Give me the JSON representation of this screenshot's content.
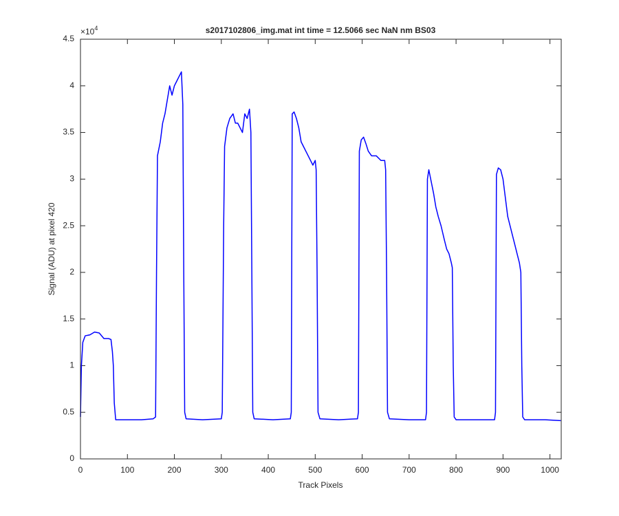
{
  "chart_data": {
    "type": "line",
    "title": "s2017102806_img.mat int time = 12.5066 sec  NaN nm BS03",
    "xlabel": "Track Pixels",
    "ylabel": "Signal (ADU) at pixel 420",
    "y_exponent": {
      "base": "×10",
      "power": "4"
    },
    "color": "#0000ff",
    "xlim": [
      0,
      1024
    ],
    "xticks": [
      0,
      100,
      200,
      300,
      400,
      500,
      600,
      700,
      800,
      900,
      1000
    ],
    "ylim": [
      0,
      4.5
    ],
    "yticks": [
      0,
      0.5,
      1,
      1.5,
      2,
      2.5,
      3,
      3.5,
      4,
      4.5
    ],
    "x": [
      0,
      2,
      5,
      10,
      20,
      30,
      40,
      50,
      60,
      65,
      68,
      70,
      72,
      75,
      100,
      130,
      155,
      160,
      162,
      164,
      170,
      175,
      180,
      185,
      190,
      195,
      200,
      205,
      210,
      215,
      218,
      220,
      222,
      225,
      260,
      300,
      302,
      305,
      307,
      312,
      318,
      325,
      330,
      335,
      340,
      345,
      350,
      355,
      360,
      363,
      365,
      367,
      370,
      410,
      447,
      449,
      451,
      455,
      460,
      465,
      470,
      475,
      480,
      485,
      490,
      495,
      500,
      502,
      504,
      506,
      510,
      550,
      590,
      592,
      594,
      598,
      603,
      608,
      613,
      620,
      630,
      640,
      648,
      650,
      652,
      654,
      658,
      700,
      735,
      737,
      739,
      742,
      748,
      752,
      757,
      762,
      768,
      775,
      780,
      785,
      790,
      792,
      794,
      796,
      800,
      840,
      882,
      884,
      886,
      890,
      895,
      900,
      905,
      910,
      915,
      920,
      925,
      930,
      935,
      938,
      940,
      942,
      946,
      990,
      1023
    ],
    "values": [
      0.45,
      1.0,
      1.25,
      1.32,
      1.33,
      1.36,
      1.35,
      1.29,
      1.29,
      1.28,
      1.15,
      1.0,
      0.6,
      0.42,
      0.42,
      0.42,
      0.43,
      0.45,
      2.0,
      3.25,
      3.4,
      3.6,
      3.7,
      3.85,
      4.0,
      3.9,
      4.0,
      4.05,
      4.1,
      4.15,
      3.8,
      2.0,
      0.5,
      0.43,
      0.42,
      0.43,
      0.5,
      2.5,
      3.35,
      3.55,
      3.65,
      3.7,
      3.6,
      3.6,
      3.55,
      3.5,
      3.7,
      3.65,
      3.75,
      3.5,
      2.0,
      0.5,
      0.43,
      0.42,
      0.43,
      0.5,
      3.7,
      3.72,
      3.65,
      3.55,
      3.4,
      3.35,
      3.3,
      3.25,
      3.2,
      3.15,
      3.2,
      3.1,
      2.0,
      0.5,
      0.43,
      0.42,
      0.43,
      0.5,
      3.3,
      3.42,
      3.45,
      3.38,
      3.3,
      3.25,
      3.25,
      3.2,
      3.2,
      3.1,
      2.0,
      0.5,
      0.43,
      0.42,
      0.42,
      0.5,
      3.0,
      3.1,
      2.95,
      2.85,
      2.7,
      2.6,
      2.5,
      2.35,
      2.25,
      2.2,
      2.1,
      2.05,
      1.0,
      0.45,
      0.42,
      0.42,
      0.42,
      0.5,
      3.05,
      3.12,
      3.1,
      3.0,
      2.8,
      2.6,
      2.5,
      2.4,
      2.3,
      2.2,
      2.1,
      2.0,
      1.0,
      0.45,
      0.42,
      0.42,
      0.41
    ]
  }
}
